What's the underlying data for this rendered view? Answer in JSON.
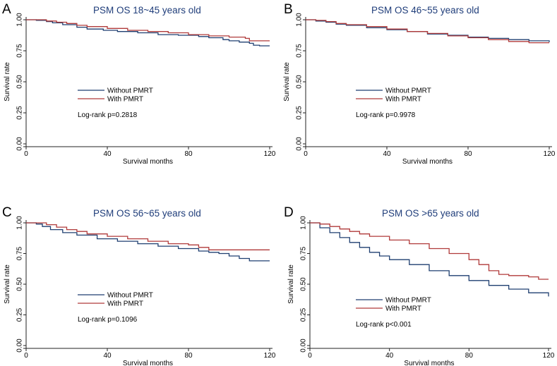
{
  "chart_data": [
    {
      "type": "line",
      "panel": "A",
      "title": "PSM OS 18~45 years old",
      "xlabel": "Survival months",
      "ylabel": "Survival rate",
      "xlim": [
        0,
        120
      ],
      "ylim": [
        0,
        1
      ],
      "xticks": [
        "0",
        "40",
        "80",
        "120"
      ],
      "yticks": [
        "0.00",
        "0.25",
        "0.50",
        "0.75",
        "1.00"
      ],
      "legend_position": "center-left",
      "annotation": "Log-rank p=0.2818",
      "series": [
        {
          "name": "Without PMRT",
          "color": "#1f3f70",
          "x": [
            0,
            5,
            10,
            13,
            18,
            25,
            30,
            38,
            45,
            55,
            65,
            75,
            85,
            90,
            97,
            100,
            105,
            110,
            112,
            115,
            120
          ],
          "y": [
            1.0,
            0.995,
            0.985,
            0.975,
            0.96,
            0.94,
            0.925,
            0.915,
            0.905,
            0.895,
            0.88,
            0.875,
            0.865,
            0.855,
            0.84,
            0.83,
            0.82,
            0.81,
            0.795,
            0.79,
            0.79
          ]
        },
        {
          "name": "With PMRT",
          "color": "#b03a3a",
          "x": [
            0,
            5,
            10,
            15,
            20,
            25,
            30,
            40,
            50,
            60,
            70,
            80,
            90,
            100,
            108,
            110,
            115,
            120
          ],
          "y": [
            1.0,
            1.0,
            0.99,
            0.98,
            0.97,
            0.955,
            0.945,
            0.93,
            0.915,
            0.905,
            0.895,
            0.88,
            0.87,
            0.86,
            0.85,
            0.83,
            0.83,
            0.83
          ]
        }
      ]
    },
    {
      "type": "line",
      "panel": "B",
      "title": "PSM OS 46~55 years old",
      "xlabel": "Survival months",
      "ylabel": "Survival rate",
      "xlim": [
        0,
        120
      ],
      "ylim": [
        0,
        1
      ],
      "xticks": [
        "0",
        "40",
        "80",
        "120"
      ],
      "yticks": [
        "0.00",
        "0.25",
        "0.50",
        "0.75",
        "1.00"
      ],
      "legend_position": "center-left",
      "annotation": "Log-rank p=0.9978",
      "series": [
        {
          "name": "Without PMRT",
          "color": "#1f3f70",
          "x": [
            0,
            5,
            10,
            15,
            20,
            30,
            40,
            50,
            60,
            70,
            80,
            90,
            100,
            110,
            120
          ],
          "y": [
            1.0,
            0.99,
            0.98,
            0.965,
            0.955,
            0.935,
            0.92,
            0.905,
            0.885,
            0.875,
            0.86,
            0.85,
            0.84,
            0.83,
            0.82
          ]
        },
        {
          "name": "With PMRT",
          "color": "#b03a3a",
          "x": [
            0,
            5,
            10,
            15,
            20,
            30,
            40,
            50,
            60,
            70,
            80,
            90,
            100,
            110,
            120
          ],
          "y": [
            1.0,
            0.995,
            0.985,
            0.97,
            0.96,
            0.945,
            0.925,
            0.905,
            0.89,
            0.87,
            0.855,
            0.84,
            0.825,
            0.815,
            0.815
          ]
        }
      ]
    },
    {
      "type": "line",
      "panel": "C",
      "title": "PSM OS 56~65 years old",
      "xlabel": "Survival months",
      "ylabel": "Survival rate",
      "xlim": [
        0,
        120
      ],
      "ylim": [
        0,
        1
      ],
      "xticks": [
        "0",
        "40",
        "80",
        "120"
      ],
      "yticks": [
        "0.00",
        "0.25",
        "0.50",
        "0.75",
        "1.00"
      ],
      "legend_position": "bottom-left",
      "annotation": "Log-rank p=0.1096",
      "series": [
        {
          "name": "Without PMRT",
          "color": "#1f3f70",
          "x": [
            0,
            5,
            8,
            12,
            18,
            25,
            35,
            45,
            55,
            65,
            75,
            85,
            90,
            95,
            100,
            105,
            110,
            120
          ],
          "y": [
            1.0,
            0.99,
            0.97,
            0.945,
            0.92,
            0.9,
            0.87,
            0.85,
            0.83,
            0.81,
            0.79,
            0.77,
            0.76,
            0.75,
            0.73,
            0.71,
            0.69,
            0.69
          ]
        },
        {
          "name": "With PMRT",
          "color": "#b03a3a",
          "x": [
            0,
            5,
            10,
            15,
            20,
            25,
            30,
            40,
            50,
            60,
            70,
            80,
            85,
            90,
            120
          ],
          "y": [
            1.0,
            1.0,
            0.985,
            0.965,
            0.945,
            0.93,
            0.91,
            0.89,
            0.87,
            0.85,
            0.83,
            0.82,
            0.8,
            0.78,
            0.78
          ]
        }
      ]
    },
    {
      "type": "line",
      "panel": "D",
      "title": "PSM OS >65 years old",
      "xlabel": "Survival months",
      "ylabel": "Survival rate",
      "xlim": [
        0,
        120
      ],
      "ylim": [
        0,
        1
      ],
      "xticks": [
        "0",
        "40",
        "80",
        "120"
      ],
      "yticks": [
        "0.00",
        "0.25",
        "0.50",
        "0.75",
        "1.00"
      ],
      "legend_position": "bottom-left",
      "annotation": "Log-rank p<0.001",
      "series": [
        {
          "name": "Without PMRT",
          "color": "#1f3f70",
          "x": [
            0,
            5,
            10,
            15,
            20,
            25,
            30,
            35,
            40,
            50,
            60,
            70,
            80,
            90,
            100,
            110,
            120
          ],
          "y": [
            1.0,
            0.96,
            0.92,
            0.88,
            0.84,
            0.8,
            0.76,
            0.73,
            0.7,
            0.66,
            0.61,
            0.57,
            0.53,
            0.49,
            0.46,
            0.43,
            0.4
          ]
        },
        {
          "name": "With PMRT",
          "color": "#b03a3a",
          "x": [
            0,
            5,
            10,
            15,
            20,
            25,
            30,
            40,
            50,
            60,
            70,
            80,
            85,
            90,
            95,
            100,
            110,
            115,
            120
          ],
          "y": [
            1.0,
            0.99,
            0.97,
            0.95,
            0.93,
            0.91,
            0.89,
            0.86,
            0.83,
            0.79,
            0.75,
            0.7,
            0.66,
            0.61,
            0.58,
            0.57,
            0.56,
            0.54,
            0.54
          ]
        }
      ]
    }
  ]
}
